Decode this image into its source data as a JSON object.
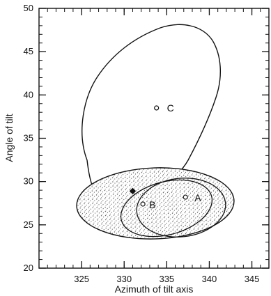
{
  "chart_data": {
    "type": "scatter",
    "title": "",
    "xlabel": "Azimuth of tilt axis",
    "ylabel": "Angle of tilt",
    "xlim": [
      320,
      347
    ],
    "ylim": [
      20,
      50
    ],
    "xticks": [
      325,
      330,
      335,
      340,
      345
    ],
    "yticks": [
      20,
      25,
      30,
      35,
      40,
      45,
      50
    ],
    "xtick_labels": [
      "325",
      "330",
      "335",
      "340",
      "345"
    ],
    "ytick_labels": [
      "20",
      "25",
      "30",
      "35",
      "40",
      "45",
      "50"
    ],
    "grid": false,
    "legend": "none",
    "points": [
      {
        "label": "C",
        "x": 333.8,
        "y": 38.5,
        "marker": "open-circle"
      },
      {
        "label": "A",
        "x": 337.2,
        "y": 28.2,
        "marker": "open-circle"
      },
      {
        "label": "B",
        "x": 332.2,
        "y": 27.4,
        "marker": "open-circle"
      },
      {
        "label": "",
        "x": 331.0,
        "y": 28.9,
        "marker": "filled-diamond"
      }
    ],
    "ellipses": [
      {
        "name": "C confidence region",
        "type": "irregular"
      },
      {
        "name": "large shaded region",
        "type": "ellipse"
      },
      {
        "name": "region A",
        "type": "ellipse"
      },
      {
        "name": "region B",
        "type": "ellipse"
      }
    ],
    "colors": {
      "line": "#111111",
      "shade": "#555555",
      "background": "#ffffff"
    }
  }
}
